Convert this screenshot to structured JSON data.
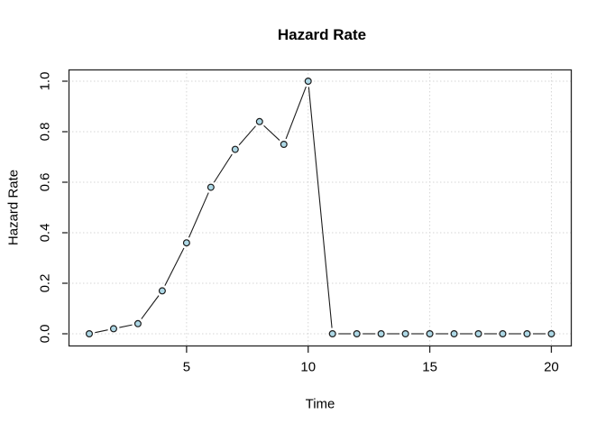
{
  "window": {
    "background": "#ffffff"
  },
  "chart_data": {
    "type": "line",
    "r_plot_type": "b",
    "title": "Hazard Rate",
    "xlabel": "Time",
    "ylabel": "Hazard Rate",
    "x": [
      1,
      2,
      3,
      4,
      5,
      6,
      7,
      8,
      9,
      10,
      11,
      12,
      13,
      14,
      15,
      16,
      17,
      18,
      19,
      20
    ],
    "y": [
      0.0,
      0.02,
      0.04,
      0.17,
      0.36,
      0.58,
      0.73,
      0.84,
      0.75,
      1.0,
      0.0,
      0.0,
      0.0,
      0.0,
      0.0,
      0.0,
      0.0,
      0.0,
      0.0,
      0.0
    ],
    "xlim": [
      1,
      20
    ],
    "ylim": [
      0,
      1
    ],
    "xticks": [
      5,
      10,
      15,
      20
    ],
    "xtick_labels": [
      "5",
      "10",
      "15",
      "20"
    ],
    "yticks": [
      0,
      0.2,
      0.4,
      0.6,
      0.8,
      1
    ],
    "ytick_labels": [
      "0.0",
      "0.2",
      "0.4",
      "0.6",
      "0.8",
      "1.0"
    ],
    "grid": {
      "visible": true,
      "style": "dotted",
      "x_at": [
        5,
        10,
        15,
        20
      ],
      "y_at": [
        0,
        0.2,
        0.4,
        0.6,
        0.8,
        1
      ]
    },
    "colors": {
      "marker_fill": "#ADD8E6",
      "marker_stroke": "#1c1c1c",
      "line": "#1c1c1c",
      "axis": "#262626",
      "grid": "#d6d6d6",
      "text": "#000000",
      "background": "#ffffff"
    }
  }
}
